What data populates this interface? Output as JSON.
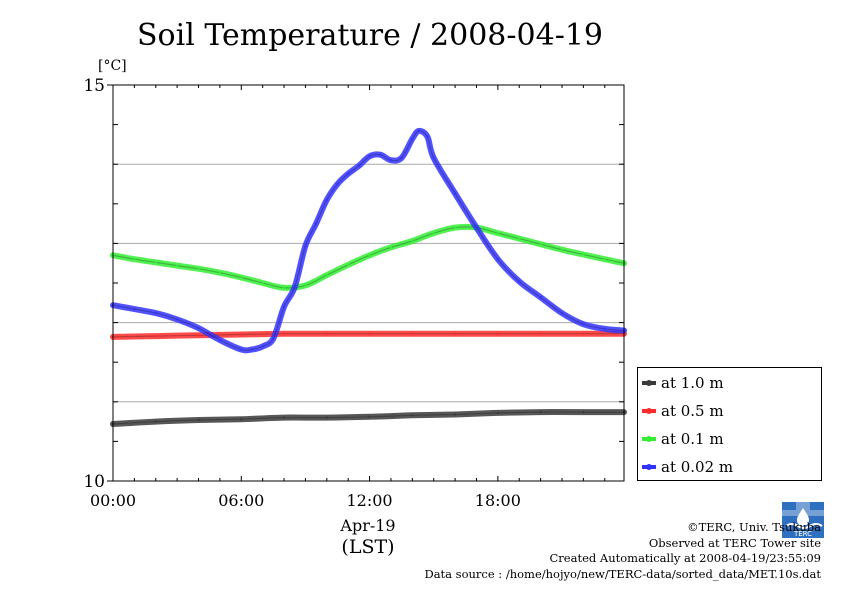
{
  "chart_data": {
    "type": "line",
    "title": "Soil Temperature / 2008-04-19",
    "ylabel": "[°C]",
    "xlabel_date": "Apr-19",
    "xlabel_unit": "(LST)",
    "ylim": [
      10,
      15
    ],
    "xlim": [
      0,
      23.9
    ],
    "y_ticks": [
      "15",
      "10"
    ],
    "x_ticks": [
      {
        "hour": 0,
        "label": "00:00"
      },
      {
        "hour": 6,
        "label": "06:00"
      },
      {
        "hour": 12,
        "label": "12:00"
      },
      {
        "hour": 18,
        "label": "18:00"
      }
    ],
    "gridlines_y": [
      11,
      12,
      13,
      14
    ],
    "legend_position": "right",
    "series": [
      {
        "name": "at 1.0 m",
        "color": "#3a3a3a",
        "x": [
          0,
          2,
          4,
          6,
          8,
          10,
          12,
          14,
          16,
          18,
          20,
          22,
          23.9
        ],
        "y": [
          10.72,
          10.75,
          10.77,
          10.78,
          10.8,
          10.8,
          10.81,
          10.83,
          10.84,
          10.86,
          10.87,
          10.87,
          10.87
        ]
      },
      {
        "name": "at 0.5 m",
        "color": "#ff2a2a",
        "x": [
          0,
          2,
          4,
          6,
          8,
          10,
          12,
          14,
          16,
          18,
          20,
          22,
          23.9
        ],
        "y": [
          11.82,
          11.83,
          11.84,
          11.85,
          11.86,
          11.86,
          11.86,
          11.86,
          11.86,
          11.86,
          11.86,
          11.86,
          11.86
        ]
      },
      {
        "name": "at 0.1 m",
        "color": "#33ee33",
        "x": [
          0,
          1,
          2,
          3,
          4,
          5,
          6,
          7,
          8,
          9,
          10,
          11,
          12,
          13,
          14,
          15,
          16,
          17,
          18,
          19,
          20,
          21,
          22,
          23,
          23.9
        ],
        "y": [
          12.85,
          12.8,
          12.76,
          12.72,
          12.68,
          12.63,
          12.57,
          12.5,
          12.44,
          12.47,
          12.6,
          12.73,
          12.85,
          12.95,
          13.03,
          13.13,
          13.2,
          13.2,
          13.13,
          13.06,
          12.99,
          12.92,
          12.86,
          12.8,
          12.75
        ]
      },
      {
        "name": "at 0.02 m",
        "color": "#3333ff",
        "x": [
          0,
          1,
          2,
          3,
          4,
          5,
          6,
          6.5,
          7,
          7.5,
          8,
          8.5,
          9,
          9.5,
          10,
          10.5,
          11,
          11.5,
          12,
          12.5,
          13,
          13.5,
          14,
          14.3,
          14.7,
          15,
          16,
          17,
          18,
          19,
          20,
          21,
          22,
          23,
          23.9
        ],
        "y": [
          12.22,
          12.17,
          12.12,
          12.04,
          11.93,
          11.78,
          11.66,
          11.66,
          11.7,
          11.8,
          12.2,
          12.45,
          12.97,
          13.25,
          13.55,
          13.75,
          13.88,
          13.98,
          14.1,
          14.12,
          14.05,
          14.08,
          14.32,
          14.42,
          14.35,
          14.08,
          13.63,
          13.2,
          12.8,
          12.52,
          12.32,
          12.12,
          11.98,
          11.92,
          11.9
        ]
      }
    ]
  },
  "credits": {
    "copyright": "©TERC, Univ. Tsukuba",
    "observed": "Observed at TERC Tower site",
    "created": "Created Automatically at 2008-04-19/23:55:09",
    "source": "Data source : /home/hojyo/new/TERC-data/sorted_data/MET.10s.dat"
  },
  "logo": {
    "text": "TERC",
    "color": "#2f6fbf"
  }
}
